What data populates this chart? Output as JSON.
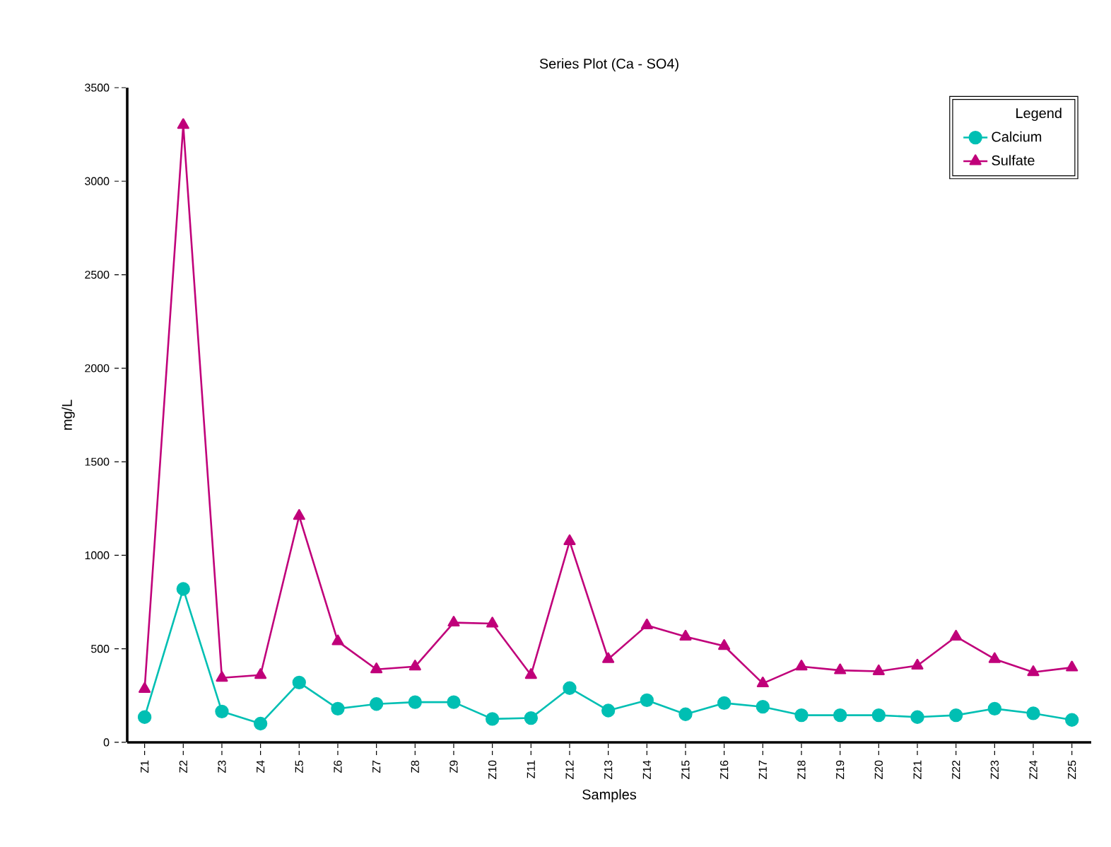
{
  "chart_data": {
    "type": "line",
    "title": "Series Plot (Ca - SO4)",
    "xlabel": "Samples",
    "ylabel": "mg/L",
    "legend_title": "Legend",
    "categories": [
      "Z1",
      "Z2",
      "Z3",
      "Z4",
      "Z5",
      "Z6",
      "Z7",
      "Z8",
      "Z9",
      "Z10",
      "Z11",
      "Z12",
      "Z13",
      "Z14",
      "Z15",
      "Z16",
      "Z17",
      "Z18",
      "Z19",
      "Z20",
      "Z21",
      "Z22",
      "Z23",
      "Z24",
      "Z25"
    ],
    "series": [
      {
        "name": "Calcium",
        "color": "#00bfb3",
        "marker": "circle",
        "values": [
          135,
          820,
          165,
          100,
          320,
          180,
          205,
          215,
          215,
          125,
          130,
          290,
          170,
          225,
          150,
          210,
          190,
          145,
          145,
          145,
          135,
          145,
          180,
          155,
          120
        ]
      },
      {
        "name": "Sulfate",
        "color": "#c0007a",
        "marker": "triangle",
        "values": [
          285,
          3300,
          345,
          360,
          1210,
          540,
          390,
          405,
          640,
          635,
          360,
          1075,
          445,
          625,
          565,
          515,
          315,
          405,
          385,
          380,
          410,
          565,
          445,
          375,
          400
        ]
      }
    ],
    "ylim": [
      0,
      3500
    ],
    "yticks": [
      0,
      500,
      1000,
      1500,
      2000,
      2500,
      3000,
      3500
    ],
    "grid": false,
    "legend": "top right",
    "line_style": "solid"
  }
}
